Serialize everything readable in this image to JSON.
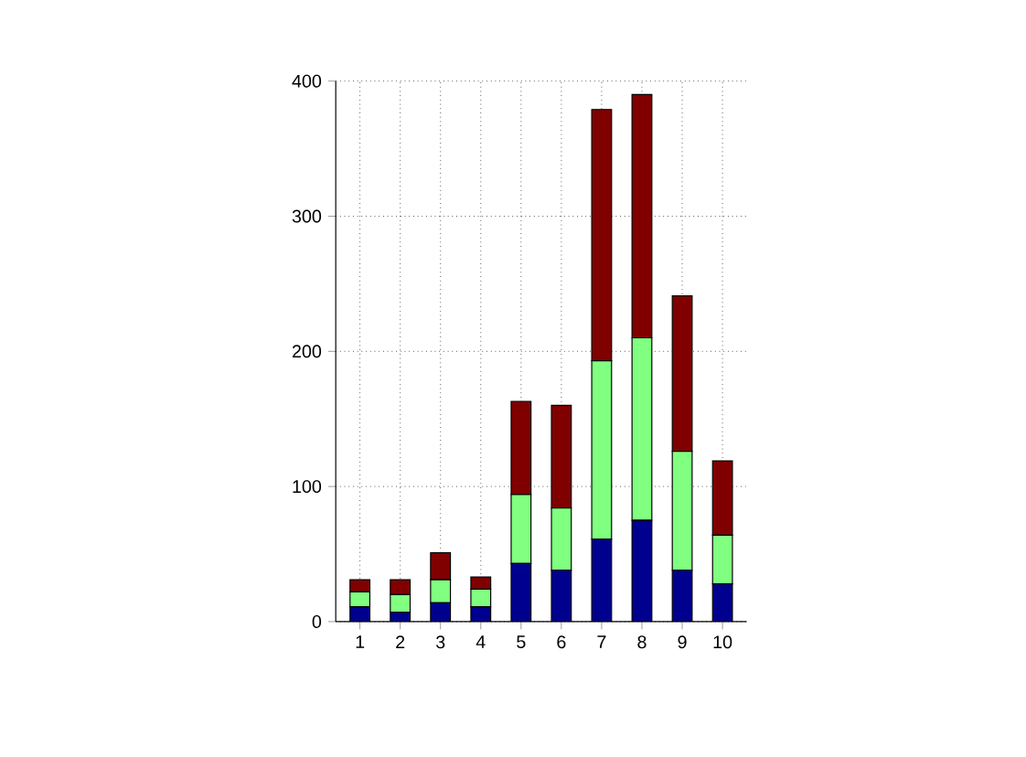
{
  "chart_data": {
    "type": "bar",
    "categories": [
      "1",
      "2",
      "3",
      "4",
      "5",
      "6",
      "7",
      "8",
      "9",
      "10"
    ],
    "stacked": true,
    "series": [
      {
        "color": "#00008f",
        "values": [
          11,
          7,
          14,
          11,
          43,
          38,
          61,
          75,
          38,
          28
        ]
      },
      {
        "color": "#80ff80",
        "values": [
          11,
          13,
          17,
          13,
          51,
          46,
          132,
          135,
          88,
          36
        ]
      },
      {
        "color": "#800000",
        "values": [
          9,
          11,
          20,
          9,
          69,
          76,
          186,
          180,
          115,
          55
        ]
      }
    ],
    "ylim": [
      0,
      400
    ],
    "yticks": [
      0,
      100,
      200,
      300,
      400
    ],
    "grid": true
  }
}
